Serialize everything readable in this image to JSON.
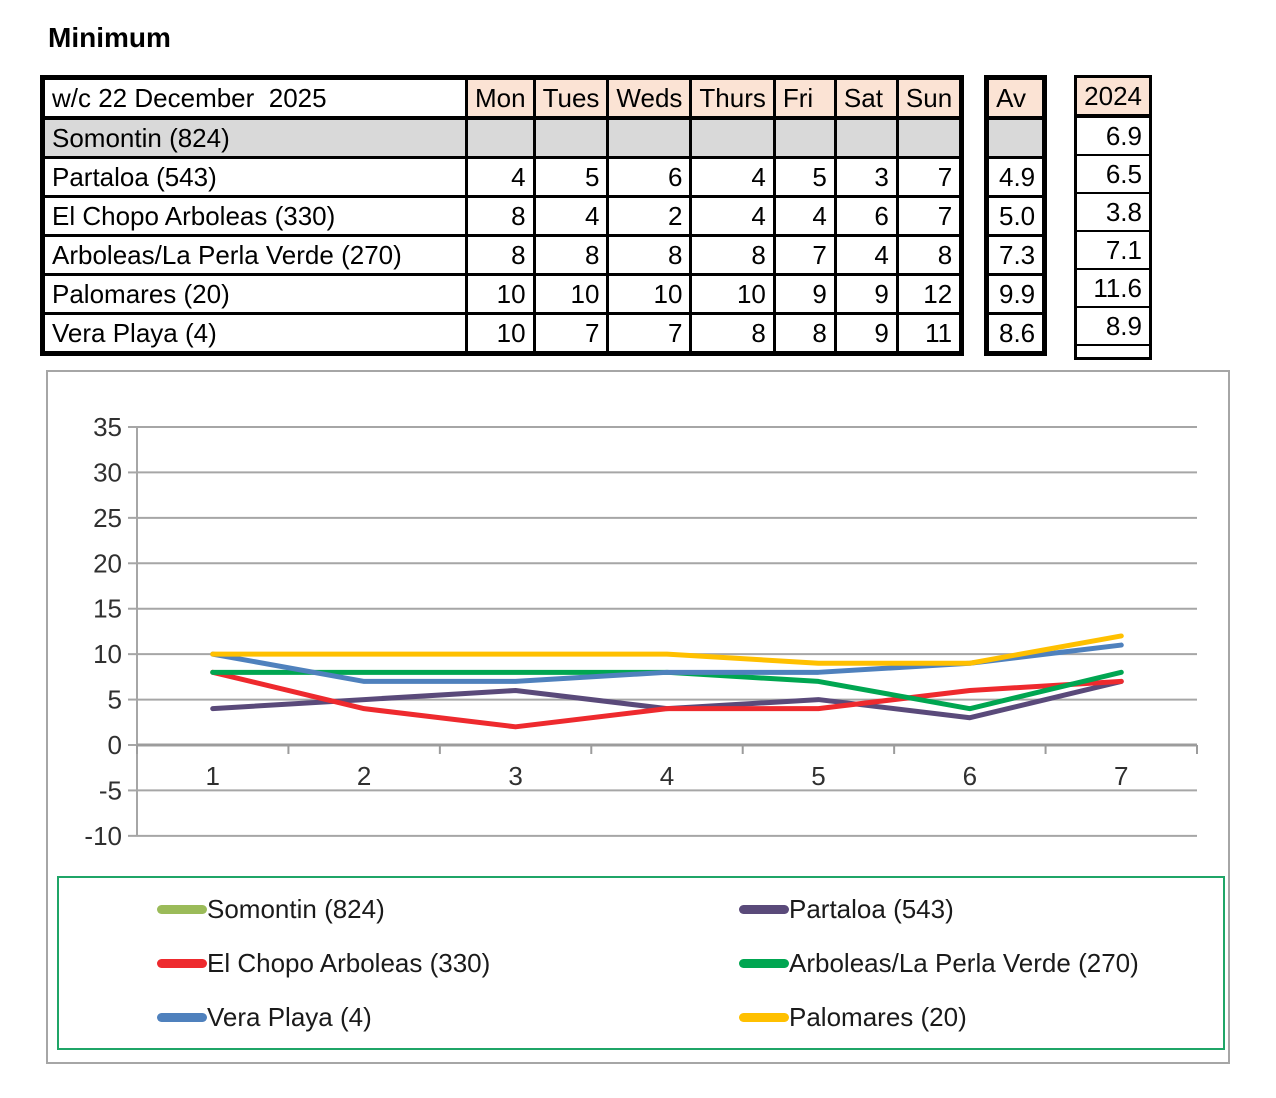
{
  "title": "Minimum",
  "table": {
    "header": {
      "label": "w/c 22 December  2025",
      "days": [
        "Mon",
        "Tues",
        "Weds",
        "Thurs",
        "Fri",
        "Sat",
        "Sun"
      ],
      "av": "Av",
      "year": "2024"
    },
    "rows": [
      {
        "label": "Somontin (824)",
        "values": [
          "",
          "",
          "",
          "",
          "",
          "",
          ""
        ],
        "av": "",
        "y2024": "6.9"
      },
      {
        "label": "Partaloa (543)",
        "values": [
          "4",
          "5",
          "6",
          "4",
          "5",
          "3",
          "7"
        ],
        "av": "4.9",
        "y2024": "6.5"
      },
      {
        "label": "El Chopo Arboleas (330)",
        "values": [
          "8",
          "4",
          "2",
          "4",
          "4",
          "6",
          "7"
        ],
        "av": "5.0",
        "y2024": "3.8"
      },
      {
        "label": "Arboleas/La Perla Verde (270)",
        "values": [
          "8",
          "8",
          "8",
          "8",
          "7",
          "4",
          "8"
        ],
        "av": "7.3",
        "y2024": "7.1"
      },
      {
        "label": "Palomares (20)",
        "values": [
          "10",
          "10",
          "10",
          "10",
          "9",
          "9",
          "12"
        ],
        "av": "9.9",
        "y2024": "11.6"
      },
      {
        "label": "Vera Playa (4)",
        "values": [
          "10",
          "7",
          "7",
          "8",
          "8",
          "9",
          "11"
        ],
        "av": "8.6",
        "y2024": "8.9"
      }
    ]
  },
  "colors": {
    "header_fill": "#FBE3D4",
    "gray_row_fill": "#D9D9D9",
    "chart_border": "#A6A6A6",
    "gridline": "#A6A6A6",
    "x_axis": "#9C9C9C",
    "axis_text": "#303030",
    "legend_border": "#1FA567"
  },
  "chart_data": {
    "type": "line",
    "x": [
      1,
      2,
      3,
      4,
      5,
      6,
      7
    ],
    "series": [
      {
        "name": "Somontin (824)",
        "color": "#9BBB59",
        "values": []
      },
      {
        "name": "Partaloa (543)",
        "color": "#5A4A7A",
        "values": [
          4,
          5,
          6,
          4,
          5,
          3,
          7
        ]
      },
      {
        "name": "El Chopo Arboleas (330)",
        "color": "#EE2A2E",
        "values": [
          8,
          4,
          2,
          4,
          4,
          6,
          7
        ]
      },
      {
        "name": "Arboleas/La Perla Verde (270)",
        "color": "#00A651",
        "values": [
          8,
          8,
          8,
          8,
          7,
          4,
          8
        ]
      },
      {
        "name": "Vera Playa (4)",
        "color": "#4F81BD",
        "values": [
          10,
          7,
          7,
          8,
          8,
          9,
          11
        ]
      },
      {
        "name": "Palomares (20)",
        "color": "#FFC000",
        "values": [
          10,
          10,
          10,
          10,
          9,
          9,
          12
        ]
      }
    ],
    "title": "",
    "xlabel": "",
    "ylabel": "",
    "ylim": [
      -10,
      35
    ],
    "ytick_step": 5,
    "grid": true,
    "legend_position": "bottom"
  },
  "legend": {
    "items": [
      {
        "label": "Somontin (824)",
        "color": "#9BBB59"
      },
      {
        "label": "Partaloa (543)",
        "color": "#5A4A7A"
      },
      {
        "label": "El Chopo Arboleas (330)",
        "color": "#EE2A2E"
      },
      {
        "label": "Arboleas/La Perla Verde (270)",
        "color": "#00A651"
      },
      {
        "label": "Vera Playa (4)",
        "color": "#4F81BD"
      },
      {
        "label": "Palomares (20)",
        "color": "#FFC000"
      }
    ]
  }
}
